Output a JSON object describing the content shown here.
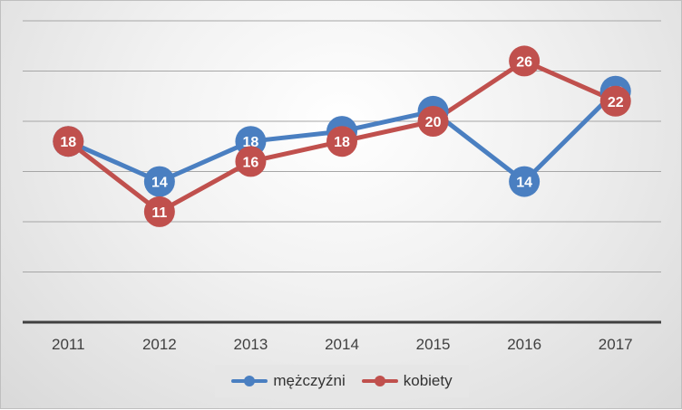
{
  "chart_data": {
    "type": "line",
    "categories": [
      "2011",
      "2012",
      "2013",
      "2014",
      "2015",
      "2016",
      "2017"
    ],
    "series": [
      {
        "name": "mężczyźni",
        "values": [
          18,
          14,
          18,
          19,
          21,
          14,
          23
        ],
        "color": "#4a7fc1"
      },
      {
        "name": "kobiety",
        "values": [
          18,
          11,
          16,
          18,
          20,
          26,
          22
        ],
        "color": "#c0504d"
      }
    ],
    "ylim": [
      0,
      30
    ],
    "grid": true,
    "legend": "bottom",
    "title": "",
    "xlabel": "",
    "ylabel": ""
  }
}
